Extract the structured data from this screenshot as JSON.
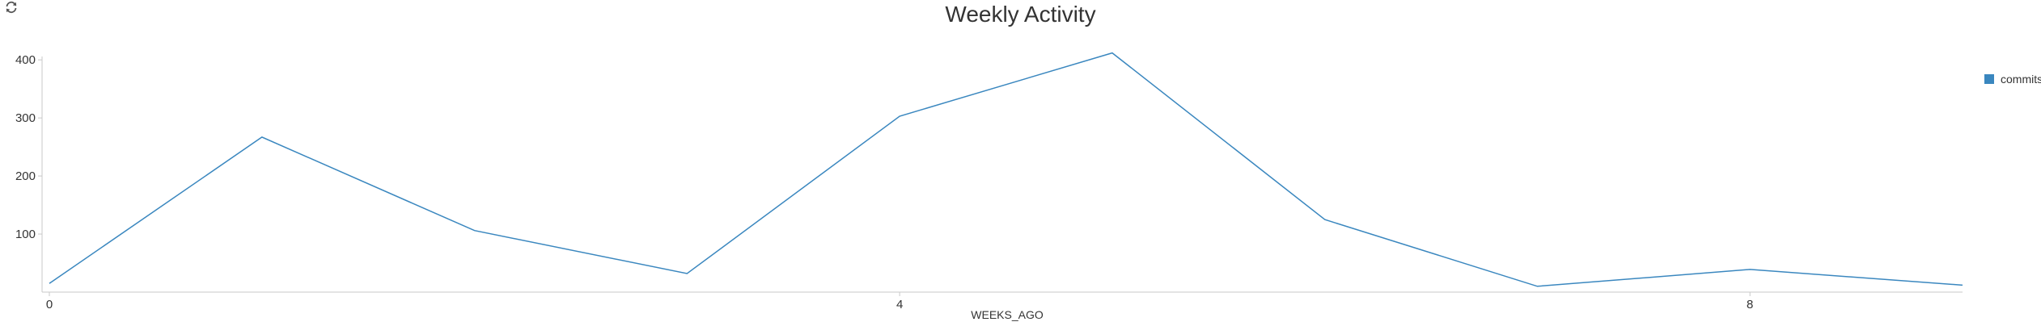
{
  "toolbar": {
    "refresh_icon": "refresh-icon"
  },
  "colors": {
    "series": "#3a87bf",
    "axis": "#c8c8c8",
    "text": "#333333"
  },
  "chart_data": {
    "type": "line",
    "title": "Weekly Activity",
    "xlabel": "WEEKS_AGO",
    "ylabel": "",
    "x": [
      0,
      1,
      2,
      3,
      4,
      5,
      6,
      7,
      8,
      9
    ],
    "xticks": [
      0,
      4,
      8
    ],
    "xlim": [
      0,
      9
    ],
    "yticks": [
      100,
      200,
      300,
      400
    ],
    "ylim": [
      0,
      410
    ],
    "grid": false,
    "legend_position": "top-right",
    "series": [
      {
        "name": "commits",
        "values": [
          15,
          267,
          106,
          32,
          303,
          412,
          125,
          10,
          39,
          12
        ]
      }
    ]
  }
}
